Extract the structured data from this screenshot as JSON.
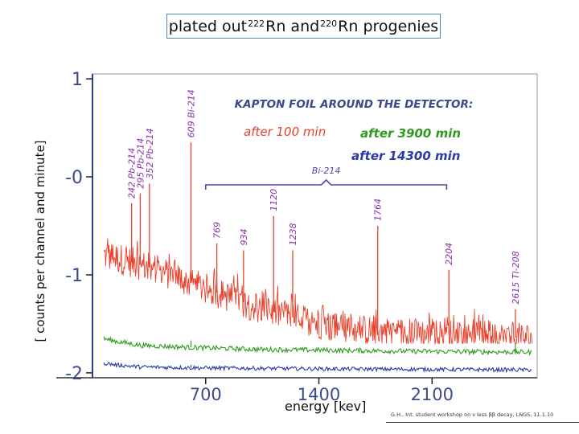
{
  "title": {
    "prefix": "plated out ",
    "sup1": "222",
    "mid": "Rn and ",
    "sup2": "220",
    "suffix": "Rn progenies"
  },
  "footer": "G.H., Int. student workshop on ν less ββ decay, LNGS, 11.1.10",
  "chart_data": {
    "type": "line",
    "title": "KAPTON FOIL AROUND THE DETECTOR:",
    "xlabel": "energy [kev]",
    "ylabel": "[ counts per channel and minute]",
    "x_ticks": [
      "700",
      "1400",
      "2100"
    ],
    "x_tick_values": [
      700,
      1400,
      2100
    ],
    "y_ticks": [
      "1",
      "-0",
      "-1",
      "-2"
    ],
    "y_tick_values": [
      1,
      0,
      -1,
      -2
    ],
    "xlim": [
      0,
      2750
    ],
    "ylim": [
      -2.05,
      1.05
    ],
    "grid": false,
    "series": [
      {
        "name": "after 100 min",
        "color": "#e8412c",
        "baseline": [
          [
            70,
            -0.8
          ],
          [
            200,
            -0.85
          ],
          [
            400,
            -0.95
          ],
          [
            600,
            -1.08
          ],
          [
            800,
            -1.2
          ],
          [
            1000,
            -1.32
          ],
          [
            1200,
            -1.42
          ],
          [
            1400,
            -1.5
          ],
          [
            1700,
            -1.57
          ],
          [
            2000,
            -1.6
          ],
          [
            2300,
            -1.62
          ],
          [
            2750,
            -1.65
          ]
        ],
        "floor": -1.7
      },
      {
        "name": "after 3900 min",
        "color": "#2e9a1e",
        "baseline": [
          [
            70,
            -1.65
          ],
          [
            150,
            -1.68
          ],
          [
            300,
            -1.72
          ],
          [
            600,
            -1.74
          ],
          [
            1000,
            -1.76
          ],
          [
            1500,
            -1.77
          ],
          [
            2000,
            -1.78
          ],
          [
            2750,
            -1.79
          ]
        ]
      },
      {
        "name": "after 14300 min",
        "color": "#2a3aa8",
        "baseline": [
          [
            70,
            -1.9
          ],
          [
            150,
            -1.92
          ],
          [
            300,
            -1.94
          ],
          [
            700,
            -1.95
          ],
          [
            1500,
            -1.96
          ],
          [
            2750,
            -1.97
          ]
        ]
      }
    ],
    "peaks": [
      {
        "label": "242 Pb-214",
        "energy": 242,
        "top": -0.27
      },
      {
        "label": "295 Pb-214",
        "energy": 295,
        "top": -0.17
      },
      {
        "label": "352 Pb-214",
        "energy": 352,
        "top": -0.07
      },
      {
        "label": "609 Bi-214",
        "energy": 609,
        "top": 0.35
      },
      {
        "label": "769",
        "energy": 769,
        "top": -0.68
      },
      {
        "label": "934",
        "energy": 934,
        "top": -0.75
      },
      {
        "label": "1120",
        "energy": 1120,
        "top": -0.4
      },
      {
        "label": "1238",
        "energy": 1238,
        "top": -0.75
      },
      {
        "label": "1764",
        "energy": 1764,
        "top": -0.5
      },
      {
        "label": "2204",
        "energy": 2204,
        "top": -0.95
      },
      {
        "label": "2615 Tl-208",
        "energy": 2615,
        "top": -1.35
      }
    ],
    "group_label": "Bi-214",
    "group_range": [
      700,
      2190
    ]
  }
}
